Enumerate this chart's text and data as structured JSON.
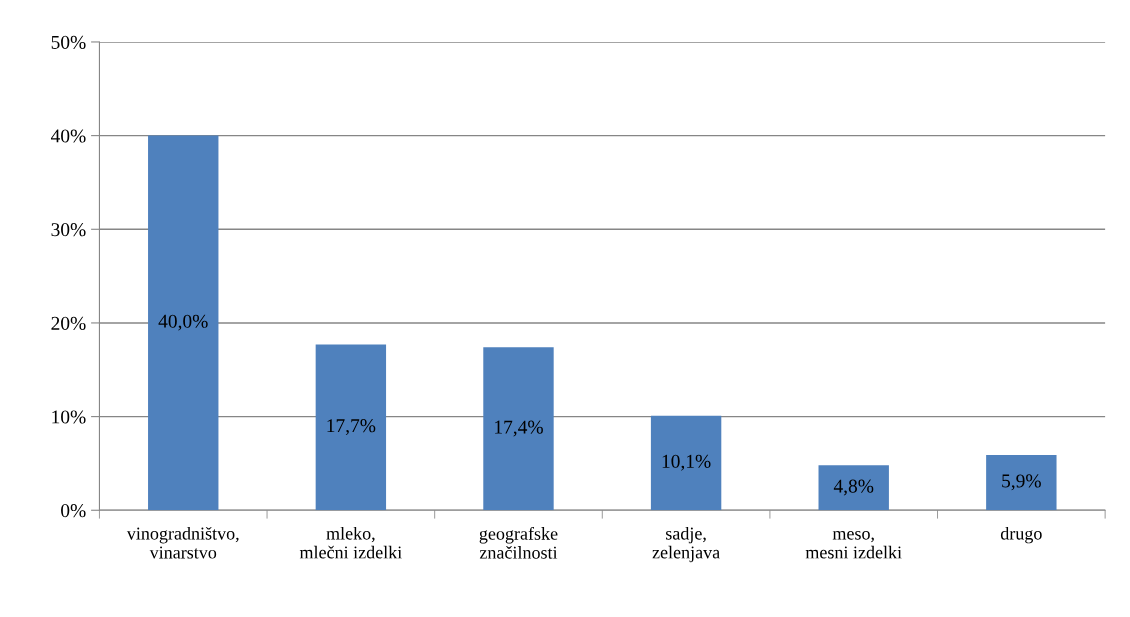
{
  "chart_data": {
    "type": "bar",
    "categories": [
      "vinogradništvo,\nvinarstvo",
      "mleko,\nmlečni izdelki",
      "geografske\nznačilnosti",
      "sadje,\nzelenjava",
      "meso,\nmesni izdelki",
      "drugo"
    ],
    "values": [
      40.0,
      17.7,
      17.4,
      10.1,
      4.8,
      5.9
    ],
    "value_labels": [
      "40,0%",
      "17,7%",
      "17,4%",
      "10,1%",
      "4,8%",
      "5,9%"
    ],
    "color": "#4f81bd",
    "ylim": [
      0,
      50
    ],
    "yticks": [
      {
        "value": 0,
        "label": "0%"
      },
      {
        "value": 10,
        "label": "10%"
      },
      {
        "value": 20,
        "label": "20%"
      },
      {
        "value": 30,
        "label": "30%"
      },
      {
        "value": 40,
        "label": "40%"
      },
      {
        "value": 50,
        "label": "50%"
      }
    ],
    "grid": "y",
    "legend": false
  }
}
